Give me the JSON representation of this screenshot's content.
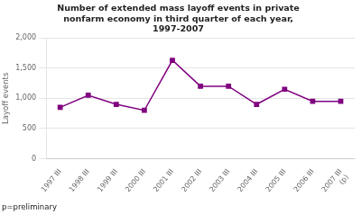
{
  "chart_data": {
    "type": "line",
    "title": "Number of extended mass layoff events in private\nnonfarm economy in third quarter of each year,\n1997-2007",
    "y_label": "Layoff events",
    "categories": [
      "1997 III",
      "1998 III",
      "1999 III",
      "2000 III",
      "2001 III",
      "2002 III",
      "2003 III",
      "2004 III",
      "2005 III",
      "2006 III",
      "2007 III\n(p)"
    ],
    "values": [
      850,
      1050,
      900,
      800,
      1630,
      1200,
      1200,
      900,
      1150,
      950,
      950
    ],
    "color": "#800080",
    "marker": "square",
    "ylim": [
      0,
      2000
    ],
    "yticks": [
      0,
      500,
      {
        "value": 1000,
        "label": "1,000"
      },
      {
        "value": 1500,
        "label": "1,500"
      },
      {
        "value": 2000,
        "label": "2,000"
      }
    ],
    "grid": "y",
    "footnote": "p=preliminary"
  }
}
